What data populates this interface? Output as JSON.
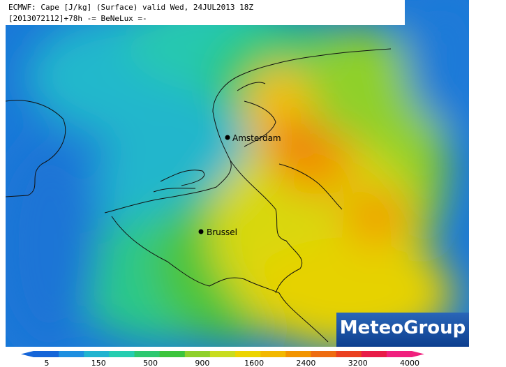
{
  "header": {
    "line1": "ECMWF: Cape [J/kg] (Surface) valid Wed, 24JUL2013 18Z",
    "line2": "[2013072112]+78h -= BeNeLux =-"
  },
  "cities": [
    {
      "label": "Amsterdam"
    },
    {
      "label": "Brussel"
    }
  ],
  "logo": "MeteoGroup",
  "colorbar": {
    "ticks": [
      5,
      150,
      500,
      900,
      1600,
      2400,
      3200,
      4000
    ],
    "colors": [
      "#1565d8",
      "#1e8fe0",
      "#21b4d0",
      "#25cdb0",
      "#2cc870",
      "#3cc43c",
      "#8fd02a",
      "#c8dc1e",
      "#ecd400",
      "#f2b800",
      "#f29400",
      "#ee6c10",
      "#ea4020",
      "#e81c48",
      "#f0207e"
    ]
  }
}
